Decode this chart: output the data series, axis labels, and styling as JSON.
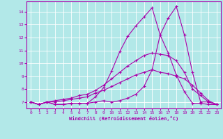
{
  "xlabel": "Windchill (Refroidissement éolien,°C)",
  "bg_color": "#b2e8e8",
  "line_color": "#aa00aa",
  "grid_color": "#ffffff",
  "xlim": [
    -0.5,
    23.5
  ],
  "ylim": [
    6.5,
    14.8
  ],
  "xticks": [
    0,
    1,
    2,
    3,
    4,
    5,
    6,
    7,
    8,
    9,
    10,
    11,
    12,
    13,
    14,
    15,
    16,
    17,
    18,
    19,
    20,
    21,
    22,
    23
  ],
  "yticks": [
    7,
    8,
    9,
    10,
    11,
    12,
    13,
    14
  ],
  "lines": [
    [
      7.0,
      6.8,
      7.0,
      6.8,
      6.8,
      6.9,
      6.9,
      6.9,
      7.0,
      7.1,
      7.0,
      7.1,
      7.3,
      7.6,
      8.2,
      9.5,
      12.2,
      13.5,
      14.4,
      12.2,
      9.3,
      7.0,
      7.0,
      6.8
    ],
    [
      7.0,
      6.8,
      7.0,
      6.8,
      6.8,
      6.9,
      6.9,
      6.9,
      7.4,
      8.1,
      9.4,
      10.9,
      12.1,
      12.9,
      13.6,
      14.3,
      12.2,
      10.8,
      9.1,
      7.8,
      6.9,
      6.9,
      6.8,
      6.8
    ],
    [
      7.0,
      6.8,
      7.0,
      7.1,
      7.2,
      7.3,
      7.5,
      7.6,
      7.9,
      8.3,
      8.8,
      9.3,
      9.8,
      10.2,
      10.6,
      10.8,
      10.7,
      10.6,
      10.2,
      9.3,
      8.0,
      7.5,
      7.0,
      6.8
    ],
    [
      7.0,
      6.8,
      7.0,
      7.0,
      7.1,
      7.2,
      7.3,
      7.4,
      7.7,
      7.9,
      8.2,
      8.5,
      8.8,
      9.1,
      9.3,
      9.5,
      9.3,
      9.2,
      9.0,
      8.8,
      8.3,
      7.7,
      7.1,
      6.8
    ]
  ]
}
